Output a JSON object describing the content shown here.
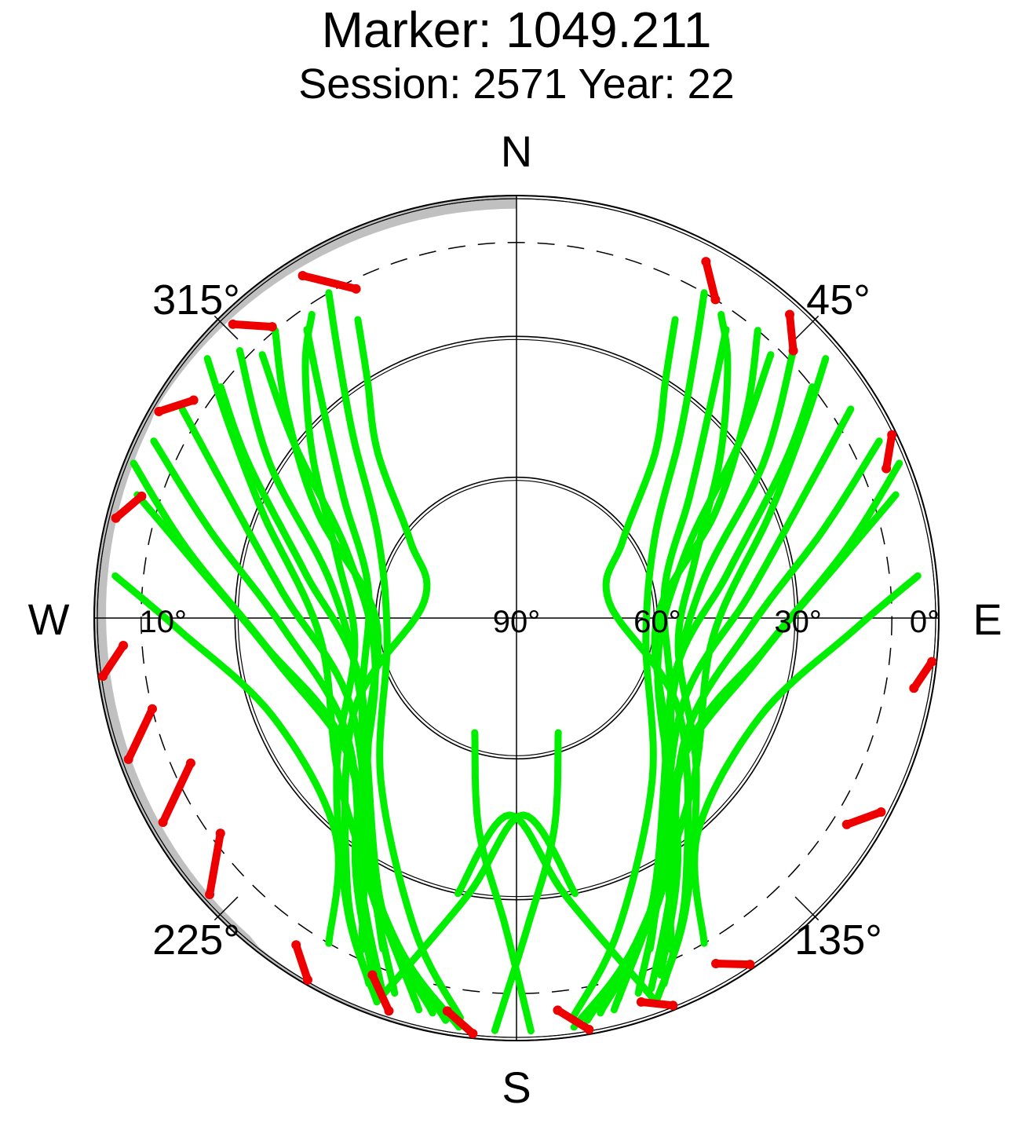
{
  "title": "Marker: 1049.211",
  "subtitle": "Session: 2571 Year: 22",
  "colors": {
    "visible": "#00ee00",
    "rejected": "#ee0000",
    "obstruction": "#c0c0c0",
    "axes": "#000000",
    "mask_circle": "#000000"
  },
  "chart_data": {
    "type": "scatter",
    "projection": "polar-skyplot",
    "radial_axis": "elevation",
    "elevation_range": [
      0,
      90
    ],
    "azimuth_range": [
      0,
      360
    ],
    "compass": {
      "north": "N",
      "east": "E",
      "south": "S",
      "west": "W"
    },
    "azimuth_labels": [
      {
        "azimuth": 45,
        "label": "45°"
      },
      {
        "azimuth": 135,
        "label": "135°"
      },
      {
        "azimuth": 225,
        "label": "225°"
      },
      {
        "azimuth": 315,
        "label": "315°"
      }
    ],
    "elevation_labels": [
      {
        "elevation": 90,
        "label": "90°"
      },
      {
        "elevation": 60,
        "label": "60°"
      },
      {
        "elevation": 30,
        "label": "30°"
      },
      {
        "elevation": 0,
        "label": "0°"
      },
      {
        "elevation": 10,
        "label": "10°",
        "side": "west"
      }
    ],
    "elevation_circles": [
      0,
      30,
      60
    ],
    "mask_elevation_dashed": 10,
    "obstruction_region": "northwest horizon, elevation approx. 0–4°",
    "series": [
      {
        "color": "#00ee00",
        "tracks": [
          {
            "az": [
              34,
              40,
              52,
              72,
              100,
              130,
              150,
              160
            ],
            "el": [
              12,
              20,
              35,
              50,
              55,
              40,
              18,
              3
            ]
          },
          {
            "az": [
              30,
              34,
              42,
              60,
              100,
              140,
              162,
              172
            ],
            "el": [
              10,
              22,
              38,
              56,
              62,
              45,
              20,
              4
            ]
          },
          {
            "az": [
              36,
              42,
              55,
              80,
              120,
              150,
              165
            ],
            "el": [
              14,
              28,
              45,
              58,
              52,
              28,
              6
            ]
          },
          {
            "az": [
              40,
              48,
              62,
              90,
              128,
              152,
              170
            ],
            "el": [
              10,
              24,
              42,
              60,
              50,
              24,
              3
            ]
          },
          {
            "az": [
              28,
              32,
              40,
              54,
              80,
              120,
              148,
              158
            ],
            "el": [
              18,
              30,
              44,
              62,
              70,
              50,
              22,
              6
            ]
          },
          {
            "az": [
              44,
              52,
              70,
              110,
              145,
              158
            ],
            "el": [
              12,
              30,
              52,
              58,
              30,
              8
            ]
          },
          {
            "az": [
              46,
              58,
              80,
              120,
              155,
              168
            ],
            "el": [
              8,
              28,
              50,
              52,
              22,
              4
            ]
          },
          {
            "az": [
              52,
              60,
              78,
              112,
              150,
              162
            ],
            "el": [
              10,
              24,
              44,
              54,
              28,
              6
            ]
          },
          {
            "az": [
              58,
              66,
              84,
              118,
              152,
              166
            ],
            "el": [
              6,
              22,
              40,
              50,
              26,
              4
            ]
          },
          {
            "az": [
              64,
              74,
              92,
              125,
              150,
              160
            ],
            "el": [
              4,
              22,
              40,
              46,
              24,
              6
            ]
          },
          {
            "az": [
              72,
              80,
              100,
              135,
              155
            ],
            "el": [
              5,
              20,
              38,
              42,
              12
            ]
          },
          {
            "az": [
              84,
              92,
              112,
              140,
              150
            ],
            "el": [
              4,
              18,
              34,
              30,
              10
            ]
          },
          {
            "az": [
              68,
              78,
              96,
              128,
              158
            ],
            "el": [
              2,
              18,
              36,
              44,
              14
            ]
          },
          {
            "az": [
              50,
              56,
              68,
              96,
              134,
              160,
              172
            ],
            "el": [
              4,
              16,
              32,
              48,
              38,
              16,
              2
            ]
          },
          {
            "az": [
              326,
              320,
              308,
              288,
              260,
              230,
              210,
              200
            ],
            "el": [
              12,
              20,
              35,
              50,
              55,
              40,
              18,
              3
            ]
          },
          {
            "az": [
              330,
              326,
              318,
              300,
              260,
              220,
              198,
              188
            ],
            "el": [
              10,
              22,
              38,
              56,
              62,
              45,
              20,
              4
            ]
          },
          {
            "az": [
              324,
              318,
              305,
              280,
              240,
              210,
              195
            ],
            "el": [
              14,
              28,
              45,
              58,
              52,
              28,
              6
            ]
          },
          {
            "az": [
              320,
              312,
              298,
              270,
              232,
              208,
              190
            ],
            "el": [
              10,
              24,
              42,
              60,
              50,
              24,
              3
            ]
          },
          {
            "az": [
              332,
              328,
              320,
              306,
              280,
              240,
              212,
              202
            ],
            "el": [
              18,
              30,
              44,
              62,
              70,
              50,
              22,
              6
            ]
          },
          {
            "az": [
              316,
              308,
              290,
              250,
              215,
              202
            ],
            "el": [
              12,
              30,
              52,
              58,
              30,
              8
            ]
          },
          {
            "az": [
              314,
              302,
              280,
              240,
              205,
              192
            ],
            "el": [
              8,
              28,
              50,
              52,
              22,
              4
            ]
          },
          {
            "az": [
              308,
              300,
              282,
              248,
              210,
              198
            ],
            "el": [
              10,
              24,
              44,
              54,
              28,
              6
            ]
          },
          {
            "az": [
              302,
              294,
              276,
              242,
              208,
              194
            ],
            "el": [
              6,
              22,
              40,
              50,
              26,
              4
            ]
          },
          {
            "az": [
              296,
              286,
              268,
              235,
              210,
              200
            ],
            "el": [
              4,
              22,
              40,
              46,
              24,
              6
            ]
          },
          {
            "az": [
              288,
              280,
              260,
              225,
              205
            ],
            "el": [
              5,
              20,
              38,
              42,
              12
            ]
          },
          {
            "az": [
              276,
              268,
              248,
              220,
              210
            ],
            "el": [
              4,
              18,
              34,
              30,
              10
            ]
          },
          {
            "az": [
              292,
              282,
              264,
              232,
              202
            ],
            "el": [
              2,
              18,
              36,
              44,
              14
            ]
          },
          {
            "az": [
              310,
              304,
              292,
              264,
              226,
              200,
              188
            ],
            "el": [
              4,
              16,
              32,
              48,
              38,
              16,
              2
            ]
          },
          {
            "az": [
              200,
              190,
              178,
              168
            ],
            "el": [
              3,
              30,
              48,
              30
            ]
          },
          {
            "az": [
              160,
              170,
              182,
              192
            ],
            "el": [
              3,
              30,
              48,
              30
            ]
          },
          {
            "az": [
              178,
              182,
              190,
              200
            ],
            "el": [
              2,
              24,
              44,
              64
            ]
          },
          {
            "az": [
              183,
              178,
              170,
              160
            ],
            "el": [
              2,
              24,
              44,
              64
            ]
          }
        ]
      },
      {
        "color": "#ee0000",
        "tracks": [
          {
            "az": [
              28,
              32
            ],
            "el": [
              4,
              10
            ]
          },
          {
            "az": [
              42,
              46
            ],
            "el": [
              3,
              8
            ]
          },
          {
            "az": [
              64,
              68
            ],
            "el": [
              1,
              5
            ]
          },
          {
            "az": [
              96,
              100
            ],
            "el": [
              1,
              4
            ]
          },
          {
            "az": [
              118,
              122
            ],
            "el": [
              2,
              7
            ]
          },
          {
            "az": [
              146,
              150
            ],
            "el": [
              1,
              5
            ]
          },
          {
            "az": [
              158,
              162
            ],
            "el": [
              1,
              4
            ]
          },
          {
            "az": [
              170,
              174
            ],
            "el": [
              1,
              6
            ]
          },
          {
            "az": [
              186,
              190
            ],
            "el": [
              1,
              5
            ]
          },
          {
            "az": [
              198,
              202
            ],
            "el": [
              2,
              8
            ]
          },
          {
            "az": [
              210,
              214
            ],
            "el": [
              1,
              6
            ]
          },
          {
            "az": [
              228,
              234
            ],
            "el": [
              2,
              12
            ]
          },
          {
            "az": [
              240,
              246
            ],
            "el": [
              3,
              14
            ]
          },
          {
            "az": [
              250,
              256
            ],
            "el": [
              2,
              10
            ]
          },
          {
            "az": [
              262,
              266
            ],
            "el": [
              1,
              6
            ]
          },
          {
            "az": [
              284,
              288
            ],
            "el": [
              2,
              6
            ]
          },
          {
            "az": [
              300,
              304
            ],
            "el": [
              2,
              7
            ]
          },
          {
            "az": [
              316,
              320
            ],
            "el": [
              3,
              9
            ]
          },
          {
            "az": [
              328,
              334
            ],
            "el": [
              4,
              12
            ]
          }
        ]
      }
    ]
  }
}
